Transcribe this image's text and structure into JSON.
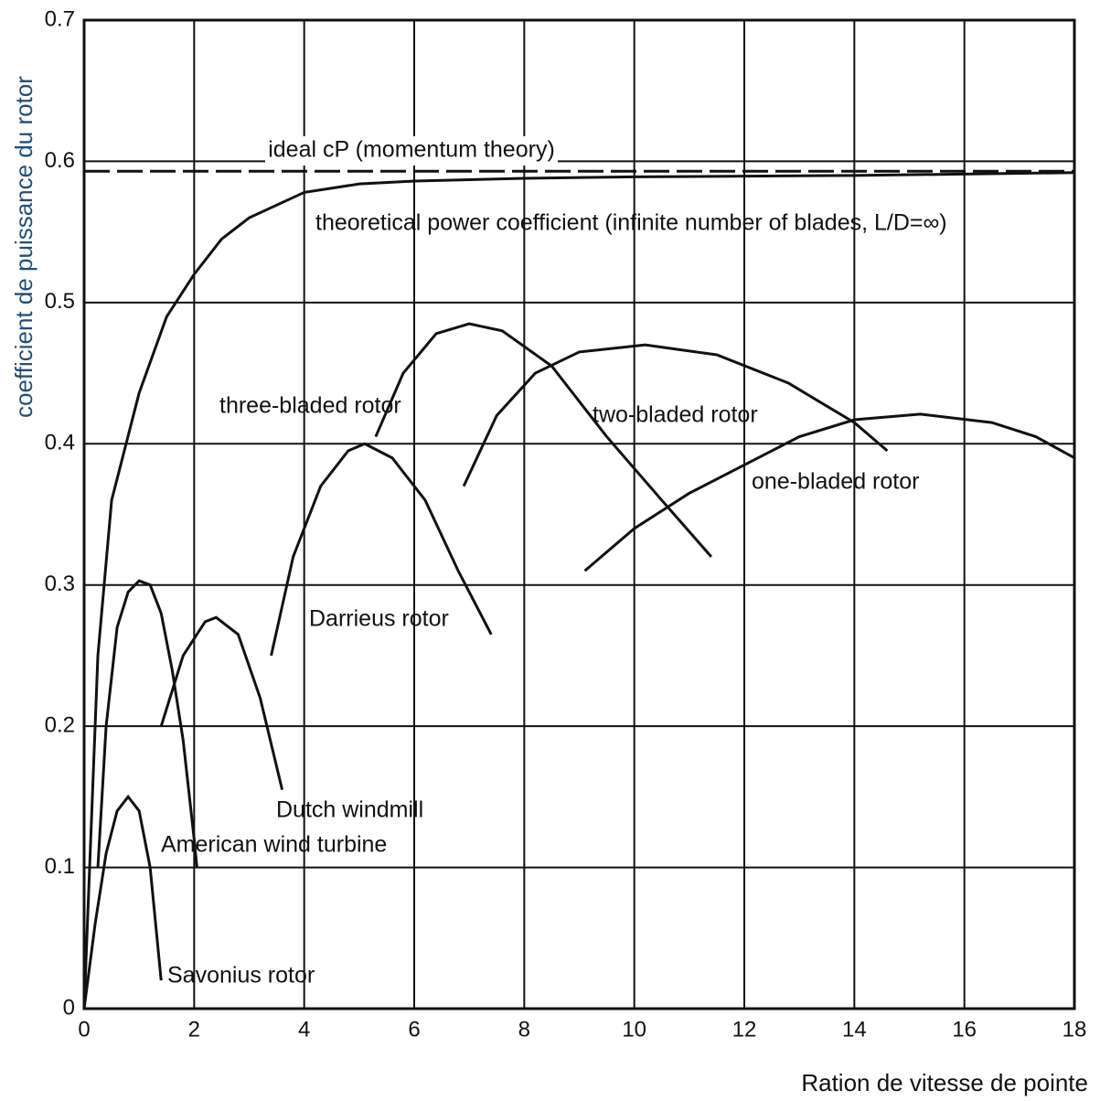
{
  "chart_data": {
    "type": "line",
    "xlabel": "Ration de vitesse de pointe",
    "ylabel": "coefficient de puissance du rotor",
    "xlim": [
      0,
      18
    ],
    "ylim": [
      0,
      0.7
    ],
    "xticks": [
      0,
      2,
      4,
      6,
      8,
      10,
      12,
      14,
      16,
      18
    ],
    "yticks": [
      0,
      0.1,
      0.2,
      0.3,
      0.4,
      0.5,
      0.6,
      0.7
    ],
    "grid": true,
    "series": [
      {
        "name": "ideal cP (momentum theory)",
        "color": "#111111",
        "dashed": true,
        "x": [
          0,
          18
        ],
        "values": [
          0.593,
          0.593
        ]
      },
      {
        "name": "theoretical power coefficient (infinite number of blades, L/D=∞)",
        "color": "#111111",
        "x": [
          0,
          0.25,
          0.5,
          1,
          1.5,
          2,
          2.5,
          3,
          4,
          5,
          6,
          8,
          10,
          14,
          18
        ],
        "values": [
          0,
          0.25,
          0.36,
          0.436,
          0.49,
          0.52,
          0.545,
          0.56,
          0.578,
          0.584,
          0.586,
          0.588,
          0.589,
          0.59,
          0.592
        ]
      },
      {
        "name": "three-bladed rotor",
        "color": "#111111",
        "x": [
          5.3,
          5.8,
          6.4,
          7,
          7.6,
          8.5,
          9.5,
          10.5,
          11.4
        ],
        "values": [
          0.405,
          0.45,
          0.478,
          0.485,
          0.48,
          0.455,
          0.405,
          0.36,
          0.32
        ]
      },
      {
        "name": "two-bladed rotor",
        "color": "#111111",
        "x": [
          6.9,
          7.5,
          8.2,
          9,
          10.2,
          11.5,
          12.8,
          14,
          14.6
        ],
        "values": [
          0.37,
          0.42,
          0.45,
          0.465,
          0.47,
          0.463,
          0.443,
          0.415,
          0.395
        ]
      },
      {
        "name": "one-bladed rotor",
        "color": "#111111",
        "x": [
          9.1,
          10,
          11,
          12,
          13,
          14,
          15.2,
          16.5,
          17.3,
          18
        ],
        "values": [
          0.31,
          0.34,
          0.365,
          0.385,
          0.405,
          0.417,
          0.421,
          0.415,
          0.405,
          0.39
        ]
      },
      {
        "name": "Darrieus rotor",
        "color": "#111111",
        "x": [
          3.4,
          3.8,
          4.3,
          4.8,
          5.1,
          5.6,
          6.2,
          6.8,
          7.4
        ],
        "values": [
          0.25,
          0.32,
          0.37,
          0.395,
          0.4,
          0.39,
          0.36,
          0.31,
          0.265
        ]
      },
      {
        "name": "Dutch windmill",
        "color": "#111111",
        "x": [
          1.4,
          1.8,
          2.2,
          2.4,
          2.8,
          3.2,
          3.6
        ],
        "values": [
          0.2,
          0.25,
          0.274,
          0.277,
          0.265,
          0.22,
          0.155
        ]
      },
      {
        "name": "American wind turbine",
        "color": "#111111",
        "x": [
          0.25,
          0.4,
          0.6,
          0.8,
          1.0,
          1.2,
          1.4,
          1.6,
          1.8,
          2.0,
          2.05
        ],
        "values": [
          0.1,
          0.2,
          0.27,
          0.295,
          0.303,
          0.3,
          0.28,
          0.24,
          0.19,
          0.12,
          0.1
        ]
      },
      {
        "name": "Savonius rotor",
        "color": "#111111",
        "x": [
          0,
          0.2,
          0.4,
          0.6,
          0.8,
          1.0,
          1.2,
          1.4
        ],
        "values": [
          0,
          0.06,
          0.11,
          0.14,
          0.15,
          0.14,
          0.1,
          0.02
        ]
      }
    ]
  }
}
